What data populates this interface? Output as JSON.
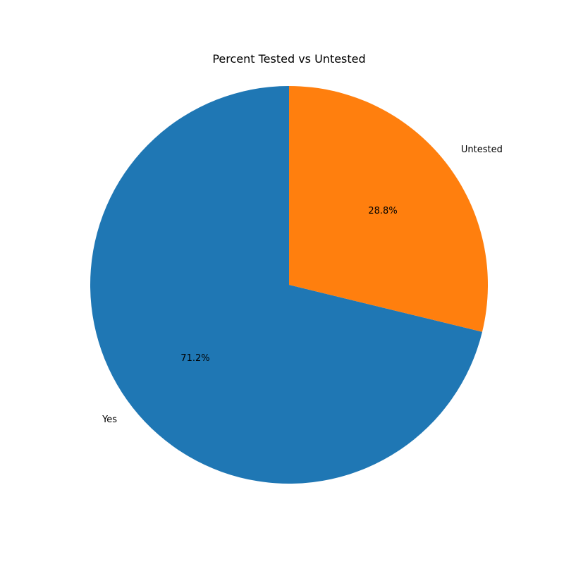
{
  "chart_data": {
    "type": "pie",
    "title": "Percent Tested vs Untested",
    "start_angle_deg": 90,
    "direction": "counterclockwise",
    "slices": [
      {
        "label": "Yes",
        "value": 71.2,
        "pct_label": "71.2%",
        "color": "#1f77b4"
      },
      {
        "label": "Untested",
        "value": 28.8,
        "pct_label": "28.8%",
        "color": "#ff7f0e"
      }
    ]
  }
}
